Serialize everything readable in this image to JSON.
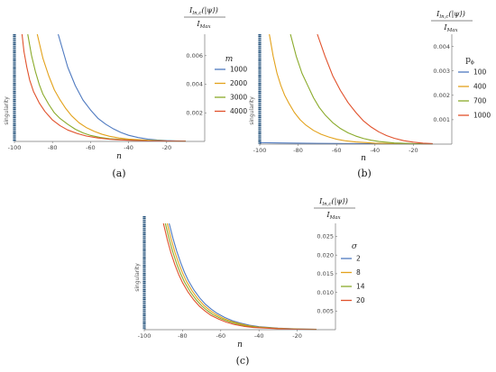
{
  "chart_data": [
    {
      "type": "line",
      "panel_caption": "(a)",
      "xlabel": "n",
      "ylabel": "I_ln,c(|ψ⟩)/I_Max",
      "singularity_label": "singularity",
      "xlim": [
        -100,
        0
      ],
      "ylim": [
        0,
        0.0075
      ],
      "x_ticks": [
        -100,
        -80,
        -60,
        -40,
        -20
      ],
      "x_tick_labels": [
        "-100",
        "-80",
        "-60",
        "-40",
        "-20"
      ],
      "y_ticks": [
        0.002,
        0.004,
        0.006
      ],
      "y_tick_labels": [
        "0.002",
        "0.004",
        "0.006"
      ],
      "legend_title": "m",
      "legend_placement": "right",
      "series": [
        {
          "name": "1000",
          "color": "#4f7ac0",
          "x": [
            -77,
            -72,
            -68,
            -64,
            -60,
            -56,
            -52,
            -48,
            -44,
            -40,
            -35,
            -30,
            -25,
            -20,
            -15,
            -10
          ],
          "y": [
            0.0075,
            0.0052,
            0.0039,
            0.0029,
            0.0022,
            0.0016,
            0.0012,
            0.00088,
            0.00062,
            0.00043,
            0.00027,
            0.00016,
            0.0001,
            6e-05,
            4e-05,
            3e-05
          ]
        },
        {
          "name": "2000",
          "color": "#e3a21b",
          "x": [
            -88,
            -85,
            -82,
            -79,
            -76,
            -73,
            -70,
            -66,
            -62,
            -58,
            -54,
            -50,
            -45,
            -40,
            -30,
            -20,
            -10
          ],
          "y": [
            0.0075,
            0.0058,
            0.0046,
            0.0036,
            0.0029,
            0.0023,
            0.0018,
            0.0013,
            0.00095,
            0.0007,
            0.0005,
            0.00036,
            0.00024,
            0.00016,
            8e-05,
            4e-05,
            3e-05
          ]
        },
        {
          "name": "3000",
          "color": "#8aaa2a",
          "x": [
            -93,
            -91,
            -89,
            -87,
            -85,
            -82,
            -79,
            -76,
            -72,
            -68,
            -64,
            -60,
            -55,
            -50,
            -40,
            -30,
            -20,
            -10
          ],
          "y": [
            0.0075,
            0.006,
            0.0049,
            0.004,
            0.0033,
            0.0026,
            0.002,
            0.0016,
            0.0012,
            0.00085,
            0.0006,
            0.00042,
            0.00028,
            0.00019,
            0.0001,
            5e-05,
            3e-05,
            2e-05
          ]
        },
        {
          "name": "4000",
          "color": "#e1512b",
          "x": [
            -96,
            -95,
            -93.5,
            -92,
            -90,
            -87,
            -84,
            -80,
            -76,
            -72,
            -67,
            -62,
            -56,
            -50,
            -40,
            -30,
            -20,
            -10
          ],
          "y": [
            0.0075,
            0.0063,
            0.0052,
            0.0043,
            0.0035,
            0.0027,
            0.0021,
            0.0015,
            0.0011,
            0.0008,
            0.00055,
            0.00037,
            0.00024,
            0.00015,
            8e-05,
            4e-05,
            3e-05,
            2e-05
          ]
        }
      ]
    },
    {
      "type": "line",
      "panel_caption": "(b)",
      "xlabel": "n",
      "ylabel": "I_ln,c(|ψ⟩)/I_Max",
      "singularity_label": "singularity",
      "xlim": [
        -100,
        0
      ],
      "ylim": [
        0,
        0.0045
      ],
      "x_ticks": [
        -100,
        -80,
        -60,
        -40,
        -20
      ],
      "x_tick_labels": [
        "-100",
        "-80",
        "-60",
        "-40",
        "-20"
      ],
      "y_ticks": [
        0.001,
        0.002,
        0.003,
        0.004
      ],
      "y_tick_labels": [
        "0.001",
        "0.002",
        "0.003",
        "0.004"
      ],
      "legend_title": "p_ϕ",
      "legend_placement": "right",
      "series": [
        {
          "name": "100",
          "color": "#4f7ac0",
          "x": [
            -100,
            -90,
            -80,
            -70,
            -60,
            -50,
            -40,
            -30,
            -20,
            -10
          ],
          "y": [
            6e-05,
            5e-05,
            4e-05,
            3e-05,
            2.5e-05,
            2e-05,
            1.5e-05,
            1e-05,
            1e-05,
            1e-05
          ]
        },
        {
          "name": "400",
          "color": "#e3a21b",
          "x": [
            -95,
            -93,
            -91,
            -89,
            -87,
            -85,
            -82,
            -79,
            -76,
            -72,
            -68,
            -64,
            -60,
            -55,
            -50,
            -40,
            -30,
            -20,
            -10
          ],
          "y": [
            0.0045,
            0.0036,
            0.0029,
            0.0024,
            0.002,
            0.0017,
            0.0013,
            0.001,
            0.00078,
            0.00056,
            0.0004,
            0.00029,
            0.0002,
            0.00013,
            9e-05,
            4e-05,
            2e-05,
            1e-05,
            1e-05
          ]
        },
        {
          "name": "700",
          "color": "#8aaa2a",
          "x": [
            -84,
            -81,
            -78,
            -75,
            -72,
            -69,
            -66,
            -62,
            -58,
            -54,
            -50,
            -46,
            -42,
            -38,
            -30,
            -20,
            -10
          ],
          "y": [
            0.0045,
            0.0036,
            0.0029,
            0.0024,
            0.0019,
            0.0015,
            0.0012,
            0.00088,
            0.00064,
            0.00046,
            0.00033,
            0.00023,
            0.00016,
            0.00011,
            5e-05,
            2e-05,
            1e-05
          ]
        },
        {
          "name": "1000",
          "color": "#e1512b",
          "x": [
            -70,
            -66,
            -62,
            -58,
            -54,
            -50,
            -46,
            -42,
            -38,
            -34,
            -30,
            -25,
            -20,
            -15,
            -10
          ],
          "y": [
            0.0045,
            0.0036,
            0.0028,
            0.0022,
            0.0017,
            0.0013,
            0.00095,
            0.0007,
            0.0005,
            0.00035,
            0.00024,
            0.00014,
            8e-05,
            4e-05,
            2e-05
          ]
        }
      ]
    },
    {
      "type": "line",
      "panel_caption": "(c)",
      "xlabel": "n",
      "ylabel": "I_ln,c(|ψ⟩)/I_Max",
      "singularity_label": "singularity",
      "xlim": [
        -100,
        0
      ],
      "ylim": [
        0,
        0.0285
      ],
      "x_ticks": [
        -100,
        -80,
        -60,
        -40,
        -20
      ],
      "x_tick_labels": [
        "-100",
        "-80",
        "-60",
        "-40",
        "-20"
      ],
      "y_ticks": [
        0.005,
        0.01,
        0.015,
        0.02,
        0.025
      ],
      "y_tick_labels": [
        "0.005",
        "0.010",
        "0.015",
        "0.020",
        "0.025"
      ],
      "legend_title": "σ",
      "legend_placement": "right",
      "series": [
        {
          "name": "2",
          "color": "#4f7ac0",
          "x": [
            -87,
            -85,
            -83,
            -81,
            -79,
            -77,
            -74,
            -71,
            -68,
            -65,
            -62,
            -58,
            -54,
            -50,
            -45,
            -40,
            -30,
            -20,
            -10
          ],
          "y": [
            0.0285,
            0.0245,
            0.021,
            0.018,
            0.0154,
            0.0132,
            0.0106,
            0.0085,
            0.0068,
            0.0055,
            0.0044,
            0.0033,
            0.0024,
            0.0018,
            0.0012,
            0.0008,
            0.0004,
            0.0002,
            0.0001
          ]
        },
        {
          "name": "8",
          "color": "#e3a21b",
          "x": [
            -88,
            -86,
            -84,
            -82,
            -80,
            -78,
            -75,
            -72,
            -69,
            -66,
            -63,
            -59,
            -55,
            -51,
            -46,
            -41,
            -30,
            -20,
            -10
          ],
          "y": [
            0.0285,
            0.0244,
            0.0208,
            0.0178,
            0.0152,
            0.013,
            0.0104,
            0.0083,
            0.0066,
            0.0053,
            0.0042,
            0.0031,
            0.0023,
            0.0017,
            0.0011,
            0.00075,
            0.00035,
            0.00018,
            0.0001
          ]
        },
        {
          "name": "14",
          "color": "#8aaa2a",
          "x": [
            -89,
            -87,
            -85,
            -83,
            -81,
            -79,
            -76,
            -73,
            -70,
            -67,
            -64,
            -60,
            -56,
            -52,
            -47,
            -42,
            -30,
            -20,
            -10
          ],
          "y": [
            0.0285,
            0.0243,
            0.0207,
            0.0176,
            0.015,
            0.0128,
            0.0102,
            0.0081,
            0.0064,
            0.0051,
            0.004,
            0.003,
            0.0022,
            0.0016,
            0.001,
            0.0007,
            0.0003,
            0.00015,
            8e-05
          ]
        },
        {
          "name": "20",
          "color": "#e1512b",
          "x": [
            -90,
            -88,
            -86,
            -84,
            -82,
            -80,
            -77,
            -74,
            -71,
            -68,
            -65,
            -61,
            -57,
            -53,
            -48,
            -43,
            -30,
            -20,
            -10
          ],
          "y": [
            0.0285,
            0.0242,
            0.0205,
            0.0174,
            0.0148,
            0.0126,
            0.01,
            0.0079,
            0.0062,
            0.0049,
            0.0038,
            0.0028,
            0.002,
            0.0014,
            0.0009,
            0.0006,
            0.00025,
            0.00012,
            6e-05
          ]
        }
      ]
    }
  ]
}
